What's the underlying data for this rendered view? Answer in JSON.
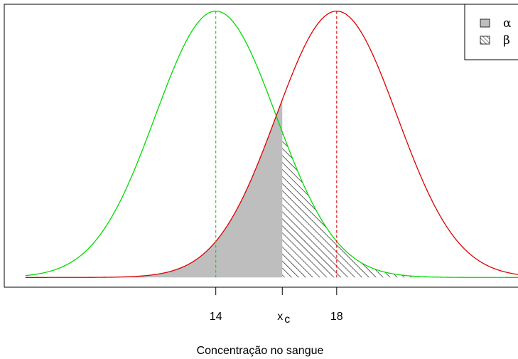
{
  "chart_data": {
    "type": "line",
    "title": "",
    "xlabel": "Concentração no sangue",
    "ylabel": "",
    "xlim": [
      7.0,
      24.4
    ],
    "ylim": [
      -0.0073,
      0.2046
    ],
    "x_ticks": [
      {
        "value": 14,
        "label": "14",
        "sub": ""
      },
      {
        "value": 16.2,
        "label": "x",
        "sub": "c"
      },
      {
        "value": 18,
        "label": "18",
        "sub": ""
      }
    ],
    "series": [
      {
        "mean": 14,
        "sd": 2,
        "color": "#00dd00"
      },
      {
        "mean": 18,
        "sd": 2,
        "color": "#dd0000"
      }
    ],
    "critical_value": 16.2,
    "x_range": [
      7.7,
      24.3
    ],
    "shaded_regions": [
      {
        "label": "α",
        "fill": "gray",
        "color": "#bebebe"
      },
      {
        "label": "β",
        "fill": "hatched",
        "color": "#000000"
      }
    ],
    "legend": {
      "position": "top-right",
      "entries": [
        {
          "label": "α",
          "style": "gray"
        },
        {
          "label": "β",
          "style": "hatched"
        }
      ]
    },
    "grid": false
  }
}
